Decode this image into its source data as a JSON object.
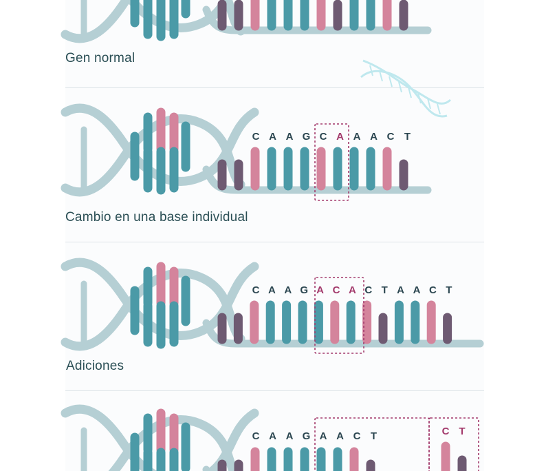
{
  "colors": {
    "teal": "#4b9aa7",
    "pink": "#d4849c",
    "purple": "#6e5a72",
    "backbone": "#b5cfd4",
    "highlight": "#a33a6c",
    "letters": "#2b4650",
    "icon": "#bfe8ee"
  },
  "rows": [
    {
      "caption": "Gen normal",
      "sequence": [],
      "highlight": [],
      "bases": [
        "purple",
        "purple",
        "pink",
        "teal",
        "teal",
        "teal",
        "pink",
        "purple",
        "teal",
        "teal",
        "pink",
        "purple"
      ]
    },
    {
      "caption": "Cambio en una base individual",
      "sequence": [
        "C",
        "A",
        "A",
        "G",
        "C",
        "A",
        "A",
        "A",
        "C",
        "T"
      ],
      "highlight": [
        5
      ],
      "bases": [
        "purple",
        "purple",
        "pink",
        "teal",
        "teal",
        "teal",
        "pink",
        "teal",
        "teal",
        "teal",
        "pink",
        "purple"
      ]
    },
    {
      "caption": "Adiciones",
      "sequence": [
        "C",
        "A",
        "A",
        "G",
        "A",
        "C",
        "A",
        "C",
        "T",
        "A",
        "A",
        "C",
        "T"
      ],
      "highlight": [
        4,
        5,
        6
      ],
      "bases": [
        "purple",
        "purple",
        "pink",
        "teal",
        "teal",
        "teal",
        "teal",
        "pink",
        "teal",
        "pink",
        "purple",
        "teal",
        "teal",
        "pink",
        "purple"
      ]
    },
    {
      "caption": "",
      "sequence": [
        "C",
        "A",
        "A",
        "G",
        "A",
        "A",
        "C",
        "T"
      ],
      "highlight": [],
      "extra_letters": [
        "C",
        "T"
      ],
      "bases": [
        "purple",
        "purple",
        "pink",
        "teal",
        "teal",
        "teal",
        "teal",
        "teal",
        "pink",
        "purple"
      ],
      "extra_bases": [
        "pink",
        "purple"
      ]
    }
  ]
}
